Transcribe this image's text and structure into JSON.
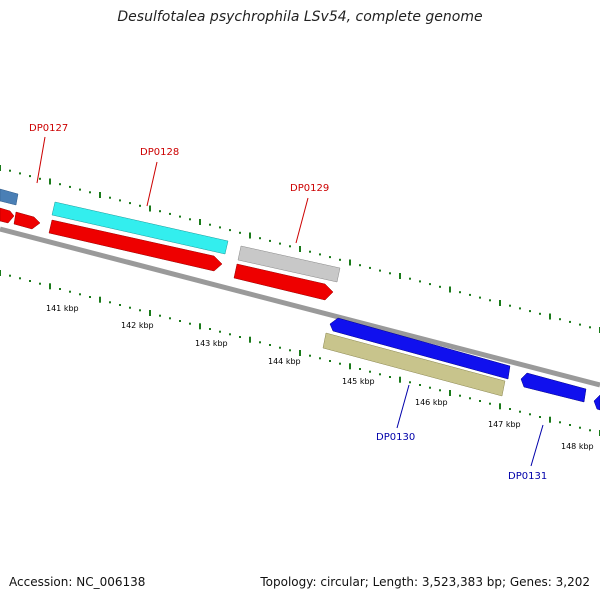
{
  "title": "Desulfotalea psychrophila LSv54, complete genome",
  "footer": {
    "accession": "Accession: NC_006138",
    "summary": "Topology: circular; Length: 3,523,383 bp; Genes: 3,202"
  },
  "colors": {
    "forward_label": "#cc0000",
    "reverse_label": "#0000aa",
    "backbone": "#808080",
    "tick": "#1a7a1a"
  },
  "scale_labels": [
    "141 kbp",
    "142 kbp",
    "143 kbp",
    "144 kbp",
    "145 kbp",
    "146 kbp",
    "147 kbp",
    "148 kbp"
  ],
  "genes": [
    {
      "label": "DP0127",
      "strand": "forward"
    },
    {
      "label": "DP0128",
      "strand": "forward"
    },
    {
      "label": "DP0129",
      "strand": "forward"
    },
    {
      "label": "DP0130",
      "strand": "reverse"
    },
    {
      "label": "DP0131",
      "strand": "reverse"
    }
  ]
}
